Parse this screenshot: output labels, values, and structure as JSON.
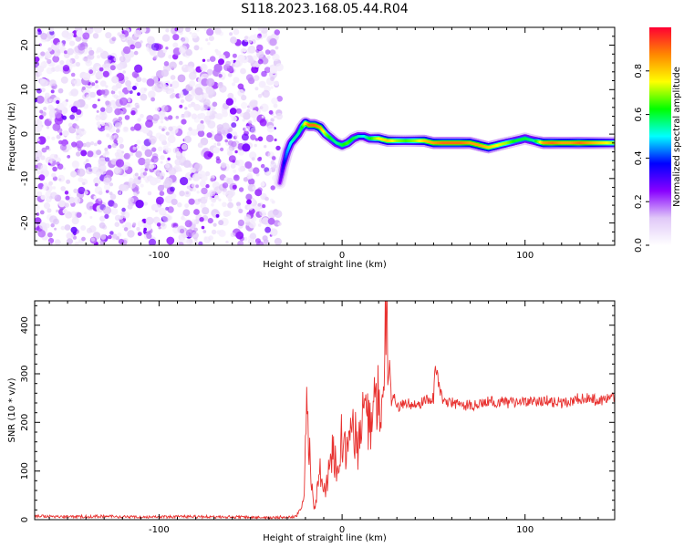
{
  "title": "S118.2023.168.05.44.R04",
  "chart_data": [
    {
      "type": "heatmap",
      "xlabel": "Height of straight line (km)",
      "ylabel": "Frequency (Hz)",
      "xlim": [
        -168,
        149
      ],
      "ylim": [
        -25,
        24
      ],
      "xticks": [
        "-100",
        "0",
        "100"
      ],
      "yticks": [
        "-20",
        "-10",
        "0",
        "10",
        "20"
      ],
      "colorbar": {
        "label": "Normalized spectral amplitude",
        "range": [
          0.0,
          1.0
        ],
        "ticks": [
          "0.0",
          "0.2",
          "0.4",
          "0.6",
          "0.8"
        ],
        "colors": [
          "#ffffff",
          "#e0c8f8",
          "#8800ff",
          "#0000ff",
          "#00ffff",
          "#00ff00",
          "#ffff00",
          "#ff8800",
          "#ff0033"
        ]
      },
      "noise_region": {
        "x": [
          -168,
          -34
        ],
        "max_amplitude": 0.25
      },
      "ridge": {
        "x": [
          -34,
          -32,
          -30,
          -28,
          -26,
          -24,
          -22,
          -20,
          -18,
          -15,
          -12,
          -9,
          -6,
          -3,
          0,
          3,
          6,
          9,
          12,
          15,
          20,
          25,
          30,
          35,
          40,
          45,
          50,
          55,
          60,
          65,
          70,
          75,
          80,
          85,
          90,
          95,
          100,
          105,
          110,
          115,
          120,
          125,
          130,
          135,
          140,
          145,
          149
        ],
        "freq": [
          -11,
          -7,
          -4,
          -2,
          -1,
          0,
          1.5,
          2.5,
          2,
          2,
          1.5,
          0,
          -1,
          -2,
          -2.5,
          -2,
          -1,
          -0.5,
          -0.5,
          -1,
          -1,
          -1.5,
          -1.5,
          -1.5,
          -1.5,
          -1.5,
          -2,
          -2,
          -2,
          -2,
          -2,
          -2.5,
          -3,
          -2.5,
          -2,
          -1.5,
          -1,
          -1.5,
          -2,
          -2,
          -2,
          -2,
          -2,
          -2,
          -2,
          -2,
          -2
        ],
        "amplitude": [
          0.25,
          0.35,
          0.45,
          0.5,
          0.55,
          0.55,
          0.6,
          0.75,
          0.9,
          0.9,
          0.85,
          0.7,
          0.6,
          0.55,
          0.6,
          0.65,
          0.6,
          0.55,
          0.5,
          0.6,
          0.75,
          0.8,
          0.7,
          0.65,
          0.7,
          0.8,
          0.85,
          0.9,
          0.9,
          0.9,
          0.85,
          0.85,
          0.8,
          0.75,
          0.7,
          0.6,
          0.6,
          0.55,
          0.85,
          0.9,
          0.85,
          0.85,
          0.9,
          0.85,
          0.8,
          0.75,
          0.7
        ]
      }
    },
    {
      "type": "line",
      "xlabel": "Height of straight line (km)",
      "ylabel": "SNR (10 * v/v)",
      "xlim": [
        -168,
        149
      ],
      "ylim": [
        0,
        450
      ],
      "xticks": [
        "-100",
        "0",
        "100"
      ],
      "yticks": [
        "0",
        "100",
        "200",
        "300",
        "400"
      ],
      "color": "#e8312f",
      "series": [
        {
          "x": [
            -168,
            -150,
            -130,
            -110,
            -90,
            -70,
            -50,
            -35,
            -25,
            -21,
            -19,
            -17,
            -15,
            -12,
            -9,
            -6,
            -3,
            0,
            3,
            6,
            9,
            12,
            15,
            18,
            20,
            22,
            24,
            25,
            26,
            27,
            28,
            30,
            35,
            40,
            45,
            50,
            51,
            55,
            60,
            70,
            80,
            90,
            100,
            110,
            120,
            130,
            140,
            149
          ],
          "y": [
            8,
            6,
            7,
            5,
            6,
            6,
            5,
            5,
            6,
            40,
            240,
            80,
            20,
            100,
            60,
            150,
            120,
            170,
            140,
            180,
            150,
            220,
            200,
            220,
            250,
            230,
            450,
            280,
            320,
            240,
            260,
            230,
            240,
            235,
            245,
            250,
            315,
            240,
            240,
            235,
            245,
            240,
            240,
            245,
            240,
            250,
            245,
            250
          ]
        }
      ]
    }
  ]
}
